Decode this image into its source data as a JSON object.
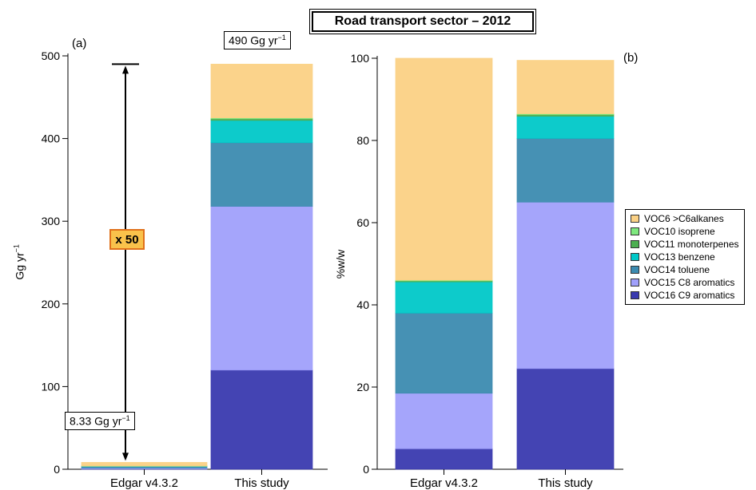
{
  "title": "Road transport sector – 2012",
  "colors": {
    "VOC6": "#fbd185",
    "VOC10": "#7ee87e",
    "VOC11": "#4caf50",
    "VOC13": "#00c8c8",
    "VOC14": "#3c8bb0",
    "VOC15": "#a0a0fb",
    "VOC16": "#3a3aaf",
    "x50_fill": "#f9c24b",
    "x50_border": "#e0701a"
  },
  "chart_data": [
    {
      "type": "bar",
      "stacked": true,
      "panel_label": "(a)",
      "ylabel": "Gg yr",
      "ylabel_sup": "−1",
      "ylim": [
        0,
        500
      ],
      "yticks": [
        0,
        100,
        200,
        300,
        400,
        500
      ],
      "categories": [
        "Edgar v4.3.2",
        "This study"
      ],
      "series": [
        {
          "key": "VOC16",
          "name": "VOC16 C9 aromatics",
          "values": [
            0.5,
            120
          ]
        },
        {
          "key": "VOC15",
          "name": "VOC15 C8 aromatics",
          "values": [
            1.0,
            198
          ]
        },
        {
          "key": "VOC14",
          "name": "VOC14 toluene",
          "values": [
            1.6,
            77
          ]
        },
        {
          "key": "VOC13",
          "name": "VOC13 benzene",
          "values": [
            0.6,
            27
          ]
        },
        {
          "key": "VOC11",
          "name": "VOC11 monoterpenes",
          "values": [
            0.02,
            2
          ]
        },
        {
          "key": "VOC10",
          "name": "VOC10 isoprene",
          "values": [
            0.01,
            1
          ]
        },
        {
          "key": "VOC6",
          "name": "VOC6 >C6alkanes",
          "values": [
            4.6,
            65
          ]
        }
      ],
      "annotations": {
        "edgar_total": "8.33 Gg yr",
        "study_total": "490 Gg yr",
        "unit_sup": "−1",
        "ratio": "x 50",
        "arrow_from": 8.33,
        "arrow_to": 490
      }
    },
    {
      "type": "bar",
      "stacked": true,
      "panel_label": "(b)",
      "ylabel": "%w/w",
      "ylim": [
        0,
        100
      ],
      "yticks": [
        0,
        20,
        40,
        60,
        80,
        100
      ],
      "categories": [
        "Edgar v4.3.2",
        "This study"
      ],
      "series": [
        {
          "key": "VOC16",
          "name": "VOC16 C9 aromatics",
          "values": [
            5.0,
            24.5
          ]
        },
        {
          "key": "VOC15",
          "name": "VOC15 C8 aromatics",
          "values": [
            13.5,
            40.5
          ]
        },
        {
          "key": "VOC14",
          "name": "VOC14 toluene",
          "values": [
            19.5,
            15.5
          ]
        },
        {
          "key": "VOC13",
          "name": "VOC13 benzene",
          "values": [
            7.6,
            5.4
          ]
        },
        {
          "key": "VOC11",
          "name": "VOC11 monoterpenes",
          "values": [
            0.25,
            0.4
          ]
        },
        {
          "key": "VOC10",
          "name": "VOC10 isoprene",
          "values": [
            0.15,
            0.2
          ]
        },
        {
          "key": "VOC6",
          "name": "VOC6 >C6alkanes",
          "values": [
            54.0,
            13.0
          ]
        }
      ]
    }
  ],
  "legend": [
    {
      "key": "VOC6",
      "label": "VOC6 >C6alkanes"
    },
    {
      "key": "VOC10",
      "label": "VOC10 isoprene"
    },
    {
      "key": "VOC11",
      "label": "VOC11 monoterpenes"
    },
    {
      "key": "VOC13",
      "label": "VOC13 benzene"
    },
    {
      "key": "VOC14",
      "label": "VOC14 toluene"
    },
    {
      "key": "VOC15",
      "label": "VOC15 C8 aromatics"
    },
    {
      "key": "VOC16",
      "label": "VOC16 C9 aromatics"
    }
  ]
}
